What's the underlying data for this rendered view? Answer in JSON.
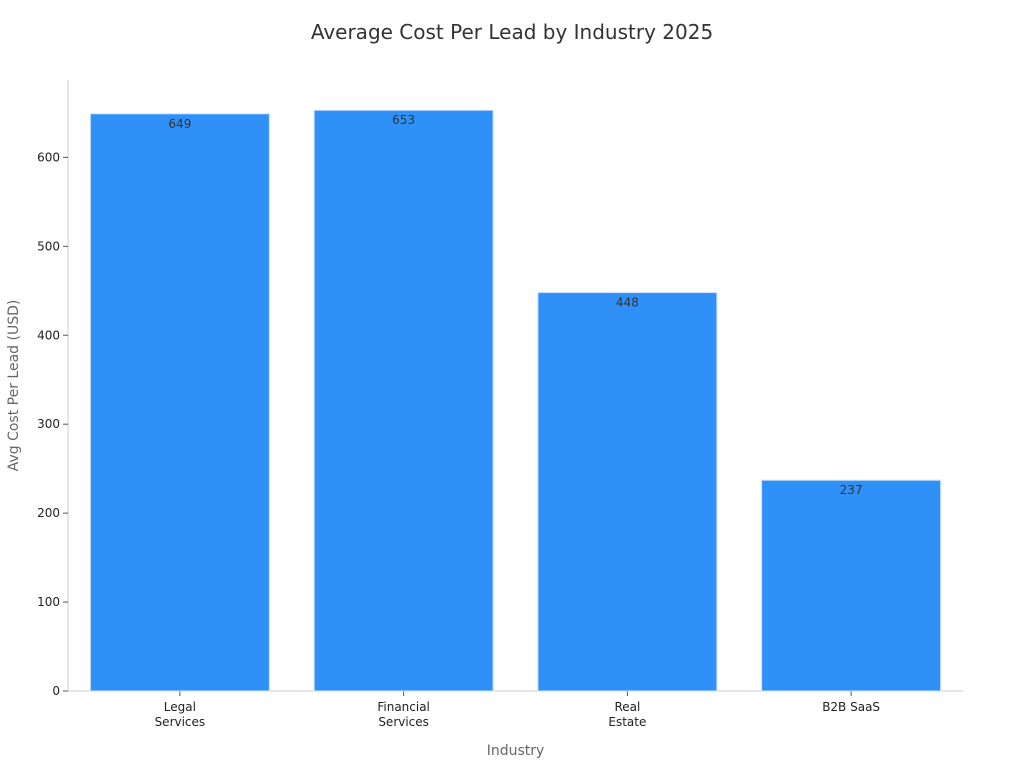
{
  "chart_data": {
    "type": "bar",
    "title": "Average Cost Per Lead by Industry 2025",
    "xlabel": "Industry",
    "ylabel": "Avg Cost Per Lead (USD)",
    "categories": [
      [
        "Legal",
        "Services"
      ],
      [
        "Financial",
        "Services"
      ],
      [
        "Real",
        "Estate"
      ],
      [
        "B2B SaaS"
      ]
    ],
    "values": [
      649,
      653,
      448,
      237
    ],
    "data_labels": [
      "649",
      "653",
      "448",
      "237"
    ],
    "yticks": [
      0,
      100,
      200,
      300,
      400,
      500,
      600
    ],
    "ylim": [
      0,
      687
    ],
    "grid": false,
    "bar_color": "#2f91f8",
    "bar_edge_color": "#cfe3fb",
    "axis_color": "#cccccc"
  }
}
